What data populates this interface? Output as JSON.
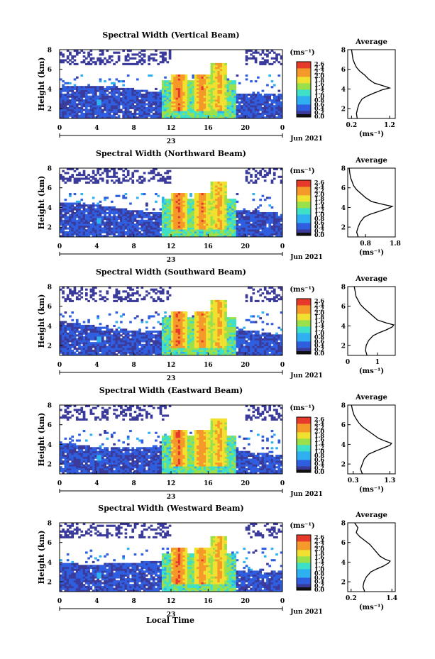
{
  "figure": {
    "colors": {
      "background": "#ffffff",
      "axis": "#000000",
      "scale": [
        "#3b3b9c",
        "#2f5fe0",
        "#2fb0f0",
        "#3fe0c8",
        "#9ae04a",
        "#f0e030",
        "#f59a2a",
        "#e83a2a"
      ]
    },
    "bottom_label": "Local Time"
  },
  "chart_data": [
    {
      "type": "heatmap",
      "title": "Spectral Width (Vertical Beam)",
      "ylabel": "Height (km)",
      "xticks": [
        "0",
        "4",
        "8",
        "12",
        "16",
        "20",
        "0"
      ],
      "xlim": [
        0,
        24
      ],
      "ylim": [
        1,
        8
      ],
      "yticks": [
        "2",
        "4",
        "6",
        "8"
      ],
      "date_day": "23",
      "date_monthyear": "Jun 2021",
      "colorbar": {
        "unit": "(ms⁻¹)",
        "ticks": [
          "2.6",
          "2.4",
          "2.2",
          "2.0",
          "1.8",
          "1.6",
          "1.4",
          "1.2",
          "1.0",
          "0.8",
          "0.6",
          "0.4",
          "0.2",
          "0.0"
        ],
        "range": [
          0,
          2.6
        ]
      },
      "average": {
        "title": "Average",
        "xlabel": "(ms⁻¹)",
        "xticks": [
          "0.2",
          "1.2"
        ],
        "xlim": [
          0.1,
          1.35
        ],
        "yticks": [
          "2",
          "4",
          "6",
          "8"
        ],
        "profile_height": [
          1.0,
          1.5,
          2.0,
          2.5,
          3.0,
          3.3,
          3.6,
          3.9,
          4.1,
          4.3,
          4.6,
          5.0,
          5.4,
          5.8,
          6.2,
          6.6,
          7.0,
          7.5,
          8.0
        ],
        "profile_width": [
          0.35,
          0.33,
          0.36,
          0.4,
          0.48,
          0.62,
          0.8,
          1.0,
          1.2,
          1.05,
          0.8,
          0.65,
          0.55,
          0.42,
          0.33,
          0.28,
          0.24,
          0.22,
          0.2
        ]
      }
    },
    {
      "type": "heatmap",
      "title": "Spectral Width (Northward Beam)",
      "ylabel": "Height (km)",
      "xticks": [
        "0",
        "4",
        "8",
        "12",
        "16",
        "20",
        "0"
      ],
      "xlim": [
        0,
        24
      ],
      "ylim": [
        1,
        8
      ],
      "yticks": [
        "2",
        "4",
        "6",
        "8"
      ],
      "date_day": "23",
      "date_monthyear": "Jun 2021",
      "colorbar": {
        "unit": "(ms⁻¹)",
        "ticks": [
          "2.6",
          "2.4",
          "2.2",
          "2.0",
          "1.8",
          "1.6",
          "1.4",
          "1.2",
          "1.0",
          "0.8",
          "0.6",
          "0.4",
          "0.2",
          "0.0"
        ],
        "range": [
          0,
          2.6
        ]
      },
      "average": {
        "title": "Average",
        "xlabel": "(ms⁻¹)",
        "xticks": [
          "0.8",
          "1.8"
        ],
        "xlim": [
          0.2,
          1.8
        ],
        "yticks": [
          "2",
          "4",
          "6",
          "8"
        ],
        "profile_height": [
          1.0,
          1.5,
          2.0,
          2.5,
          3.0,
          3.3,
          3.6,
          3.9,
          4.1,
          4.3,
          4.6,
          5.0,
          5.4,
          5.8,
          6.2,
          6.6,
          7.0,
          7.5,
          8.0
        ],
        "profile_width": [
          0.55,
          0.5,
          0.55,
          0.62,
          0.75,
          0.95,
          1.25,
          1.55,
          1.7,
          1.4,
          1.0,
          0.8,
          0.65,
          0.5,
          0.4,
          0.35,
          0.3,
          0.27,
          0.25
        ]
      }
    },
    {
      "type": "heatmap",
      "title": "Spectral Width (Southward Beam)",
      "ylabel": "Height (km)",
      "xticks": [
        "0",
        "4",
        "8",
        "12",
        "16",
        "20",
        "0"
      ],
      "xlim": [
        0,
        24
      ],
      "ylim": [
        1,
        8
      ],
      "yticks": [
        "2",
        "4",
        "6",
        "8"
      ],
      "date_day": "23",
      "date_monthyear": "Jun 2021",
      "colorbar": {
        "unit": "(ms⁻¹)",
        "ticks": [
          "2.6",
          "2.4",
          "2.2",
          "2.0",
          "1.8",
          "1.6",
          "1.4",
          "1.2",
          "1.0",
          "0.8",
          "0.6",
          "0.4",
          "0.2",
          "0.0"
        ],
        "range": [
          0,
          2.6
        ]
      },
      "average": {
        "title": "Average",
        "xlabel": "(ms⁻¹)",
        "xticks": [
          "0",
          "1"
        ],
        "xlim": [
          0,
          1.6
        ],
        "yticks": [
          "2",
          "4",
          "6",
          "8"
        ],
        "profile_height": [
          1.0,
          1.5,
          2.0,
          2.5,
          3.0,
          3.3,
          3.6,
          3.9,
          4.1,
          4.3,
          4.6,
          5.0,
          5.4,
          5.8,
          6.2,
          6.6,
          7.0,
          7.5,
          8.0
        ],
        "profile_width": [
          0.65,
          0.6,
          0.62,
          0.7,
          0.85,
          1.05,
          1.3,
          1.5,
          1.55,
          1.3,
          1.0,
          0.85,
          0.7,
          0.55,
          0.42,
          0.35,
          0.28,
          0.25,
          0.22
        ]
      }
    },
    {
      "type": "heatmap",
      "title": "Spectral Width (Eastward Beam)",
      "ylabel": "Height (km)",
      "xticks": [
        "0",
        "4",
        "8",
        "12",
        "16",
        "20",
        "0"
      ],
      "xlim": [
        0,
        24
      ],
      "ylim": [
        1,
        8
      ],
      "yticks": [
        "2",
        "4",
        "6",
        "8"
      ],
      "date_day": "23",
      "date_monthyear": "Jun 2021",
      "colorbar": {
        "unit": "(ms⁻¹)",
        "ticks": [
          "2.6",
          "2.4",
          "2.2",
          "2.0",
          "1.8",
          "1.6",
          "1.4",
          "1.2",
          "1.0",
          "0.8",
          "0.6",
          "0.4",
          "0.2",
          "0.0"
        ],
        "range": [
          0,
          2.6
        ]
      },
      "average": {
        "title": "Average",
        "xlabel": "(ms⁻¹)",
        "xticks": [
          "0.3",
          "1.3"
        ],
        "xlim": [
          0.15,
          1.45
        ],
        "yticks": [
          "2",
          "4",
          "6",
          "8"
        ],
        "profile_height": [
          1.0,
          1.5,
          2.0,
          2.5,
          3.0,
          3.3,
          3.6,
          3.9,
          4.1,
          4.3,
          4.6,
          5.0,
          5.4,
          5.8,
          6.2,
          6.6,
          7.0,
          7.5,
          8.0
        ],
        "profile_width": [
          0.55,
          0.5,
          0.55,
          0.6,
          0.72,
          0.9,
          1.1,
          1.3,
          1.35,
          1.2,
          1.0,
          0.85,
          0.7,
          0.55,
          0.45,
          0.38,
          0.32,
          0.28,
          0.25
        ]
      }
    },
    {
      "type": "heatmap",
      "title": "Spectral Width (Westward Beam)",
      "ylabel": "Height (km)",
      "xticks": [
        "0",
        "4",
        "8",
        "12",
        "16",
        "20",
        "0"
      ],
      "xlim": [
        0,
        24
      ],
      "ylim": [
        1,
        8
      ],
      "yticks": [
        "2",
        "4",
        "6",
        "8"
      ],
      "date_day": "23",
      "date_monthyear": "Jun 2021",
      "colorbar": {
        "unit": "(ms⁻¹)",
        "ticks": [
          "2.6",
          "2.4",
          "2.2",
          "2.0",
          "1.8",
          "1.6",
          "1.4",
          "1.2",
          "1.0",
          "0.8",
          "0.6",
          "0.4",
          "0.2",
          "0.0"
        ],
        "range": [
          0,
          2.6
        ]
      },
      "average": {
        "title": "Average",
        "xlabel": "(ms⁻¹)",
        "xticks": [
          "0.2",
          "1.4"
        ],
        "xlim": [
          0.1,
          1.5
        ],
        "yticks": [
          "2",
          "4",
          "6",
          "8"
        ],
        "profile_height": [
          1.0,
          1.5,
          2.0,
          2.5,
          3.0,
          3.3,
          3.6,
          3.9,
          4.1,
          4.3,
          4.6,
          5.0,
          5.4,
          5.8,
          6.2,
          6.6,
          7.0,
          7.5,
          8.0
        ],
        "profile_width": [
          0.6,
          0.55,
          0.58,
          0.65,
          0.78,
          0.95,
          1.15,
          1.3,
          1.35,
          1.2,
          1.05,
          0.95,
          0.85,
          0.75,
          0.6,
          0.45,
          0.35,
          0.4,
          0.3
        ]
      }
    }
  ]
}
